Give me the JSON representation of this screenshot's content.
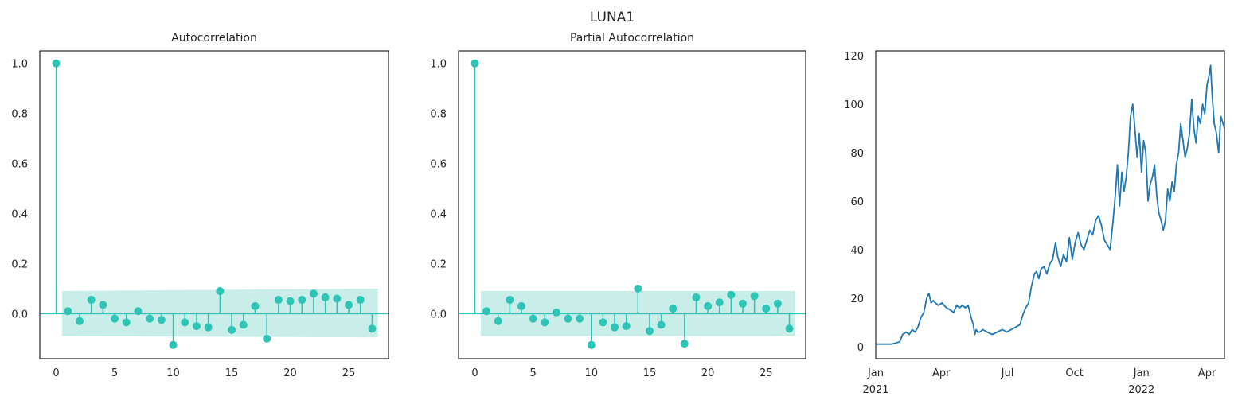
{
  "figure": {
    "suptitle": "LUNA1"
  },
  "colors": {
    "stem": "#2ec4b6",
    "band": "#c9eeea",
    "line": "#1f78b4",
    "frame": "#262626"
  },
  "chart_data": [
    {
      "type": "stem",
      "title": "Autocorrelation",
      "xlabel": "",
      "ylabel": "",
      "xlim": [
        -1.4,
        28.4
      ],
      "ylim": [
        -0.18,
        1.05
      ],
      "xticks": [
        0,
        5,
        10,
        15,
        20,
        25
      ],
      "yticks": [
        0.0,
        0.2,
        0.4,
        0.6,
        0.8,
        1.0
      ],
      "ytick_labels": [
        "0.0",
        "0.2",
        "0.4",
        "0.6",
        "0.8",
        "1.0"
      ],
      "grid": false,
      "lags": [
        0,
        1,
        2,
        3,
        4,
        5,
        6,
        7,
        8,
        9,
        10,
        11,
        12,
        13,
        14,
        15,
        16,
        17,
        18,
        19,
        20,
        21,
        22,
        23,
        24,
        25,
        26,
        27
      ],
      "values": [
        1.0,
        0.01,
        -0.03,
        0.055,
        0.035,
        -0.02,
        -0.035,
        0.01,
        -0.02,
        -0.025,
        -0.125,
        -0.035,
        -0.05,
        -0.055,
        0.09,
        -0.065,
        -0.045,
        0.03,
        -0.1,
        0.055,
        0.05,
        0.055,
        0.08,
        0.065,
        0.06,
        0.035,
        0.055,
        -0.06
      ],
      "confint_lags": [
        0.5,
        27.5
      ],
      "confint_upper": [
        0.09,
        0.1
      ],
      "confint_lower": [
        -0.09,
        -0.095
      ]
    },
    {
      "type": "stem",
      "title": "Partial Autocorrelation",
      "xlabel": "",
      "ylabel": "",
      "xlim": [
        -1.4,
        28.4
      ],
      "ylim": [
        -0.18,
        1.05
      ],
      "xticks": [
        0,
        5,
        10,
        15,
        20,
        25
      ],
      "yticks": [
        0.0,
        0.2,
        0.4,
        0.6,
        0.8,
        1.0
      ],
      "ytick_labels": [
        "0.0",
        "0.2",
        "0.4",
        "0.6",
        "0.8",
        "1.0"
      ],
      "grid": false,
      "lags": [
        0,
        1,
        2,
        3,
        4,
        5,
        6,
        7,
        8,
        9,
        10,
        11,
        12,
        13,
        14,
        15,
        16,
        17,
        18,
        19,
        20,
        21,
        22,
        23,
        24,
        25,
        26,
        27
      ],
      "values": [
        1.0,
        0.01,
        -0.03,
        0.055,
        0.03,
        -0.02,
        -0.035,
        0.005,
        -0.02,
        -0.02,
        -0.125,
        -0.035,
        -0.055,
        -0.05,
        0.1,
        -0.07,
        -0.045,
        0.02,
        -0.12,
        0.065,
        0.03,
        0.045,
        0.075,
        0.04,
        0.07,
        0.02,
        0.04,
        -0.06
      ],
      "confint_lags": [
        0.5,
        27.5
      ],
      "confint_upper": [
        0.09,
        0.09
      ],
      "confint_lower": [
        -0.09,
        -0.09
      ]
    },
    {
      "type": "line",
      "title": "",
      "xlabel": "",
      "ylabel": "",
      "xlim": [
        "2021-01-01",
        "2022-04-25"
      ],
      "ylim": [
        -5,
        122
      ],
      "xtick_dates": [
        "2021-01-01",
        "2021-04-01",
        "2021-07-01",
        "2021-10-01",
        "2022-01-01",
        "2022-04-01"
      ],
      "xtick_labels": [
        [
          "Jan",
          "2021"
        ],
        [
          "Apr",
          ""
        ],
        [
          "Jul",
          ""
        ],
        [
          "Oct",
          ""
        ],
        [
          "Jan",
          "2022"
        ],
        [
          "Apr",
          ""
        ]
      ],
      "yticks": [
        0,
        20,
        40,
        60,
        80,
        100,
        120
      ],
      "grid": false,
      "x": [
        "2021-01-01",
        "2021-01-08",
        "2021-01-15",
        "2021-01-22",
        "2021-01-29",
        "2021-02-03",
        "2021-02-07",
        "2021-02-12",
        "2021-02-16",
        "2021-02-20",
        "2021-02-24",
        "2021-02-28",
        "2021-03-04",
        "2021-03-08",
        "2021-03-12",
        "2021-03-15",
        "2021-03-18",
        "2021-03-21",
        "2021-03-24",
        "2021-03-28",
        "2021-04-02",
        "2021-04-08",
        "2021-04-14",
        "2021-04-18",
        "2021-04-22",
        "2021-04-26",
        "2021-04-30",
        "2021-05-04",
        "2021-05-08",
        "2021-05-12",
        "2021-05-15",
        "2021-05-17",
        "2021-05-19",
        "2021-05-21",
        "2021-05-24",
        "2021-05-28",
        "2021-06-03",
        "2021-06-10",
        "2021-06-17",
        "2021-06-24",
        "2021-06-30",
        "2021-07-06",
        "2021-07-12",
        "2021-07-18",
        "2021-07-22",
        "2021-07-26",
        "2021-07-30",
        "2021-08-03",
        "2021-08-07",
        "2021-08-10",
        "2021-08-13",
        "2021-08-16",
        "2021-08-20",
        "2021-08-24",
        "2021-08-28",
        "2021-09-01",
        "2021-09-05",
        "2021-09-08",
        "2021-09-12",
        "2021-09-16",
        "2021-09-20",
        "2021-09-24",
        "2021-09-28",
        "2021-10-02",
        "2021-10-06",
        "2021-10-10",
        "2021-10-14",
        "2021-10-18",
        "2021-10-22",
        "2021-10-26",
        "2021-10-30",
        "2021-11-03",
        "2021-11-07",
        "2021-11-11",
        "2021-11-15",
        "2021-11-19",
        "2021-11-23",
        "2021-11-26",
        "2021-11-29",
        "2021-12-02",
        "2021-12-05",
        "2021-12-08",
        "2021-12-11",
        "2021-12-14",
        "2021-12-17",
        "2021-12-20",
        "2021-12-23",
        "2021-12-26",
        "2021-12-29",
        "2022-01-01",
        "2022-01-04",
        "2022-01-07",
        "2022-01-10",
        "2022-01-13",
        "2022-01-16",
        "2022-01-19",
        "2022-01-22",
        "2022-01-25",
        "2022-01-28",
        "2022-01-31",
        "2022-02-03",
        "2022-02-06",
        "2022-02-09",
        "2022-02-12",
        "2022-02-15",
        "2022-02-18",
        "2022-02-21",
        "2022-02-24",
        "2022-02-27",
        "2022-03-02",
        "2022-03-05",
        "2022-03-08",
        "2022-03-11",
        "2022-03-14",
        "2022-03-17",
        "2022-03-20",
        "2022-03-23",
        "2022-03-26",
        "2022-03-29",
        "2022-04-01",
        "2022-04-04",
        "2022-04-06",
        "2022-04-08",
        "2022-04-11",
        "2022-04-14",
        "2022-04-17",
        "2022-04-20",
        "2022-04-23",
        "2022-04-25"
      ],
      "y": [
        1,
        1,
        1,
        1,
        1.5,
        2,
        5,
        6,
        5,
        7,
        6,
        8,
        12,
        14,
        20,
        22,
        18,
        19,
        18,
        17,
        18,
        16,
        15,
        14,
        17,
        16,
        17,
        16,
        17,
        12,
        9,
        5,
        7,
        6,
        6,
        7,
        6,
        5,
        6,
        7,
        6,
        7,
        8,
        9,
        13,
        16,
        18,
        25,
        30,
        31,
        28,
        32,
        33,
        30,
        34,
        36,
        43,
        37,
        33,
        38,
        35,
        45,
        36,
        43,
        47,
        42,
        40,
        44,
        48,
        46,
        52,
        54,
        50,
        44,
        42,
        40,
        52,
        62,
        75,
        58,
        72,
        64,
        70,
        80,
        95,
        100,
        90,
        78,
        88,
        72,
        85,
        80,
        60,
        67,
        70,
        75,
        62,
        55,
        52,
        48,
        52,
        65,
        60,
        68,
        64,
        75,
        80,
        92,
        85,
        78,
        82,
        88,
        102,
        90,
        84,
        95,
        92,
        100,
        96,
        108,
        112,
        116,
        104,
        92,
        88,
        80,
        95,
        92,
        90
      ],
      "series_color": "#1f78b4"
    }
  ]
}
